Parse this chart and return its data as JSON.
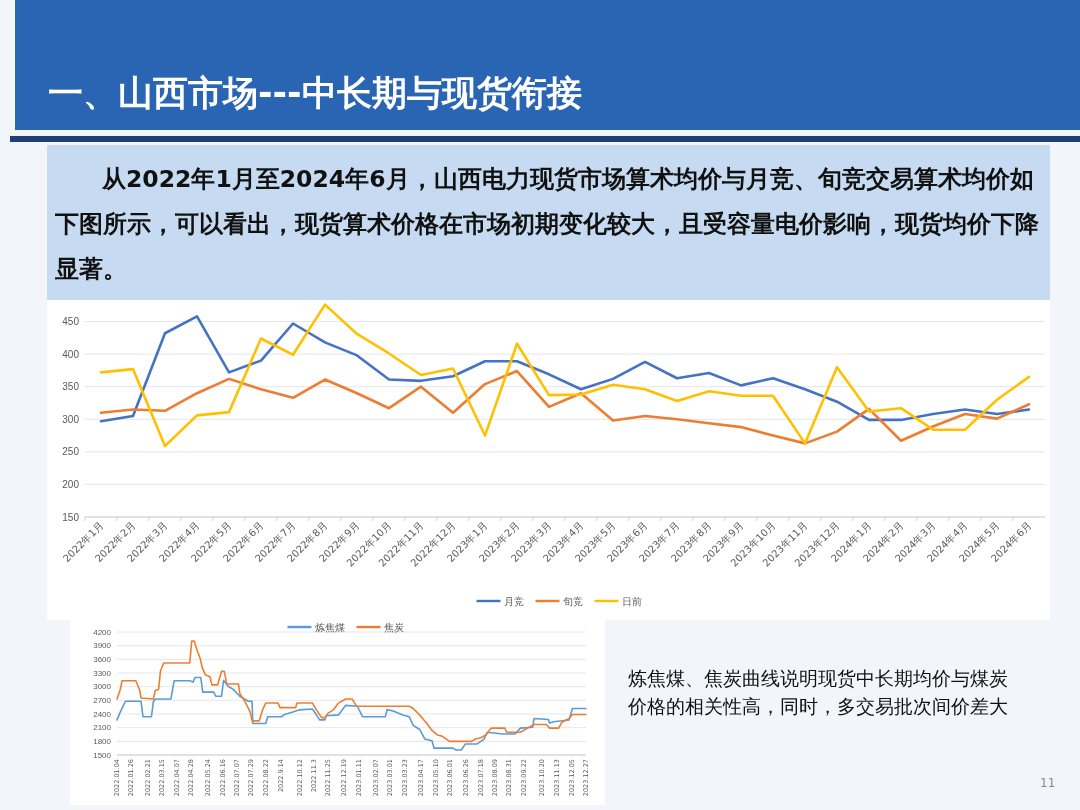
{
  "chart_data": [
    {
      "type": "line",
      "title": "一、山西市场---中长期与现货衔接",
      "subtitle": "从2022年1月至2024年6月，山西电力现货市场算术均价与月竞、旬竞交易算术均价如下图所示，可以看出，现货算术价格在市场初期变化较大，且受容量电价影响，现货均价下降显著。",
      "categories": [
        "2022年1月",
        "2022年2月",
        "2022年3月",
        "2022年4月",
        "2022年5月",
        "2022年6月",
        "2022年7月",
        "2022年8月",
        "2022年9月",
        "2022年10月",
        "2022年11月",
        "2022年12月",
        "2023年1月",
        "2023年2月",
        "2023年3月",
        "2023年4月",
        "2023年5月",
        "2023年6月",
        "2023年7月",
        "2023年8月",
        "2023年9月",
        "2023年10月",
        "2023年11月",
        "2023年12月",
        "2024年1月",
        "2024年2月",
        "2024年3月",
        "2024年4月",
        "2024年5月",
        "2024年6月"
      ],
      "series": [
        {
          "name": "月竞",
          "color": "#4472c4",
          "values": [
            297,
            305,
            432,
            458,
            372,
            390,
            447,
            418,
            398,
            361,
            359,
            366,
            389,
            389,
            369,
            346,
            362,
            388,
            363,
            371,
            352,
            363,
            346,
            327,
            299,
            299,
            308,
            315,
            308,
            315
          ]
        },
        {
          "name": "旬竞",
          "color": "#ed7d31",
          "values": [
            310,
            315,
            313,
            340,
            362,
            346,
            333,
            361,
            340,
            317,
            350,
            310,
            354,
            374,
            319,
            340,
            298,
            305,
            300,
            294,
            288,
            275,
            263,
            281,
            316,
            267,
            289,
            308,
            301,
            323
          ]
        },
        {
          "name": "日前",
          "color": "#ffc000",
          "values": [
            372,
            377,
            259,
            306,
            311,
            424,
            399,
            476,
            431,
            401,
            368,
            378,
            275,
            416,
            337,
            338,
            353,
            346,
            328,
            343,
            336,
            336,
            263,
            380,
            312,
            317,
            284,
            284,
            330,
            365
          ]
        }
      ],
      "ylim": [
        150,
        480
      ],
      "yticks": [
        150,
        200,
        250,
        300,
        350,
        400,
        450
      ],
      "grid": "y",
      "legend": "bottom"
    },
    {
      "type": "line",
      "annotations": [
        "炼焦煤、焦炭曲线说明现货中长期均价与煤炭价格的相关性高，同时，多交易批次间价差大",
        "11"
      ],
      "xlim": [
        "2022-01-04",
        "2023-12-27"
      ],
      "xticks": [
        {
          "value": "2022-01-04",
          "label": "2022.01.04"
        },
        {
          "value": "2022-01-26",
          "label": "2022.01.26"
        },
        {
          "value": "2022-02-21",
          "label": "2022.02.21"
        },
        {
          "value": "2022-03-15",
          "label": "2022.03.15"
        },
        {
          "value": "2022-04-07",
          "label": "2022.04.07"
        },
        {
          "value": "2022-04-28",
          "label": "2022.04.28"
        },
        {
          "value": "2022-05-24",
          "label": "2022.05.24"
        },
        {
          "value": "2022-06-16",
          "label": "2022.06.16"
        },
        {
          "value": "2022-07-07",
          "label": "2022.07.07"
        },
        {
          "value": "2022-07-29",
          "label": "2022.07.29"
        },
        {
          "value": "2022-08-22",
          "label": "2022.08.22"
        },
        {
          "value": "2022-09-14",
          "label": "2022.9.14"
        },
        {
          "value": "2022-10-12",
          "label": "2022.10.12"
        },
        {
          "value": "2022-11-03",
          "label": "2022.11.3"
        },
        {
          "value": "2022-11-25",
          "label": "2022.11.25"
        },
        {
          "value": "2022-12-19",
          "label": "2022.12.19"
        },
        {
          "value": "2023-01-11",
          "label": "2023.01.11"
        },
        {
          "value": "2023-02-07",
          "label": "2023.02.07"
        },
        {
          "value": "2023-03-01",
          "label": "2023.03.01"
        },
        {
          "value": "2023-03-23",
          "label": "2023.03.23"
        },
        {
          "value": "2023-04-17",
          "label": "2023.04.17"
        },
        {
          "value": "2023-05-10",
          "label": "2023.05.10"
        },
        {
          "value": "2023-06-01",
          "label": "2023.06.01"
        },
        {
          "value": "2023-06-26",
          "label": "2023.06.26"
        },
        {
          "value": "2023-07-18",
          "label": "2023.07.18"
        },
        {
          "value": "2023-08-09",
          "label": "2023.08.09"
        },
        {
          "value": "2023-08-31",
          "label": "2023.08.31"
        },
        {
          "value": "2023-09-22",
          "label": "2023.09.22"
        },
        {
          "value": "2023-10-20",
          "label": "2023.10.20"
        },
        {
          "value": "2023-11-13",
          "label": "2023.11.13"
        },
        {
          "value": "2023-12-05",
          "label": "2023.12.05"
        },
        {
          "value": "2023-12-27",
          "label": "2023.12.27"
        }
      ],
      "series": [
        {
          "name": "炼焦煤",
          "color": "#5b9bd5",
          "x": [
            "2022-01-04",
            "2022-01-09",
            "2022-01-17",
            "2022-02-10",
            "2022-02-13",
            "2022-02-26",
            "2022-03-01",
            "2022-03-04",
            "2022-03-28",
            "2022-04-02",
            "2022-04-26",
            "2022-05-01",
            "2022-05-04",
            "2022-05-13",
            "2022-05-16",
            "2022-06-02",
            "2022-06-05",
            "2022-06-14",
            "2022-06-17",
            "2022-06-24",
            "2022-07-02",
            "2022-07-12",
            "2022-07-25",
            "2022-07-31",
            "2022-08-01",
            "2022-08-21",
            "2022-08-24",
            "2022-09-14",
            "2022-09-19",
            "2022-10-03",
            "2022-10-11",
            "2022-11-01",
            "2022-11-12",
            "2022-11-20",
            "2022-11-22",
            "2022-12-11",
            "2022-12-22",
            "2023-01-09",
            "2023-01-17",
            "2023-02-21",
            "2023-02-24",
            "2023-03-06",
            "2023-03-20",
            "2023-03-30",
            "2023-04-05",
            "2023-04-15",
            "2023-04-23",
            "2023-05-04",
            "2023-05-07",
            "2023-06-05",
            "2023-06-10",
            "2023-06-18",
            "2023-06-24",
            "2023-07-12",
            "2023-07-23",
            "2023-07-28",
            "2023-08-21",
            "2023-09-09",
            "2023-09-17",
            "2023-10-06",
            "2023-10-08",
            "2023-10-30",
            "2023-11-01",
            "2023-11-07",
            "2023-12-01",
            "2023-12-06",
            "2023-12-27"
          ],
          "values": [
            2270,
            2440,
            2680,
            2680,
            2340,
            2340,
            2670,
            2730,
            2730,
            3130,
            3130,
            3100,
            3200,
            3200,
            2880,
            2880,
            2790,
            2790,
            3140,
            3010,
            2940,
            2790,
            2680,
            2680,
            2190,
            2190,
            2340,
            2340,
            2390,
            2450,
            2490,
            2510,
            2270,
            2270,
            2360,
            2380,
            2590,
            2570,
            2340,
            2340,
            2500,
            2460,
            2380,
            2340,
            2150,
            2060,
            1850,
            1810,
            1650,
            1650,
            1610,
            1610,
            1740,
            1740,
            1850,
            2000,
            1960,
            1960,
            2090,
            2110,
            2300,
            2280,
            2200,
            2230,
            2270,
            2520,
            2520
          ]
        },
        {
          "name": "焦炭",
          "color": "#ed7d31",
          "x": [
            "2022-01-04",
            "2022-01-09",
            "2022-01-12",
            "2022-02-02",
            "2022-02-08",
            "2022-02-10",
            "2022-03-01",
            "2022-03-04",
            "2022-03-09",
            "2022-03-12",
            "2022-03-17",
            "2022-04-26",
            "2022-04-29",
            "2022-05-03",
            "2022-05-07",
            "2022-05-12",
            "2022-05-15",
            "2022-05-20",
            "2022-05-27",
            "2022-05-30",
            "2022-06-08",
            "2022-06-10",
            "2022-06-14",
            "2022-06-18",
            "2022-06-22",
            "2022-07-10",
            "2022-07-12",
            "2022-07-18",
            "2022-07-23",
            "2022-07-28",
            "2022-07-31",
            "2022-08-11",
            "2022-08-16",
            "2022-08-21",
            "2022-09-09",
            "2022-09-12",
            "2022-10-06",
            "2022-10-08",
            "2022-11-01",
            "2022-11-07",
            "2022-11-15",
            "2022-11-20",
            "2022-11-25",
            "2022-12-03",
            "2022-12-11",
            "2022-12-22",
            "2023-01-01",
            "2023-01-07",
            "2023-01-09",
            "2023-03-30",
            "2023-04-05",
            "2023-04-15",
            "2023-04-26",
            "2023-05-04",
            "2023-05-12",
            "2023-05-20",
            "2023-05-31",
            "2023-07-04",
            "2023-07-10",
            "2023-07-18",
            "2023-07-26",
            "2023-08-03",
            "2023-08-24",
            "2023-08-27",
            "2023-09-17",
            "2023-09-28",
            "2023-10-08",
            "2023-10-27",
            "2023-11-01",
            "2023-11-15",
            "2023-11-20",
            "2023-12-01",
            "2023-12-06",
            "2023-12-27"
          ],
          "values": [
            2730,
            2940,
            3130,
            3130,
            2920,
            2750,
            2730,
            2920,
            2940,
            3350,
            3520,
            3520,
            4000,
            4000,
            3810,
            3620,
            3430,
            3260,
            3220,
            3040,
            3040,
            3140,
            3340,
            3340,
            3060,
            3060,
            2850,
            2720,
            2590,
            2440,
            2250,
            2250,
            2490,
            2640,
            2640,
            2540,
            2540,
            2640,
            2640,
            2490,
            2320,
            2320,
            2420,
            2490,
            2640,
            2730,
            2730,
            2590,
            2570,
            2570,
            2520,
            2380,
            2190,
            2040,
            1940,
            1910,
            1800,
            1800,
            1850,
            1880,
            1940,
            2090,
            2090,
            2000,
            2000,
            2090,
            2170,
            2170,
            2090,
            2090,
            2220,
            2300,
            2390,
            2390
          ]
        }
      ],
      "ylim": [
        1500,
        4200
      ],
      "yticks": [
        1500,
        1800,
        2100,
        2400,
        2700,
        3000,
        3300,
        3600,
        3900,
        4200
      ],
      "grid": "y",
      "legend": "top"
    }
  ]
}
